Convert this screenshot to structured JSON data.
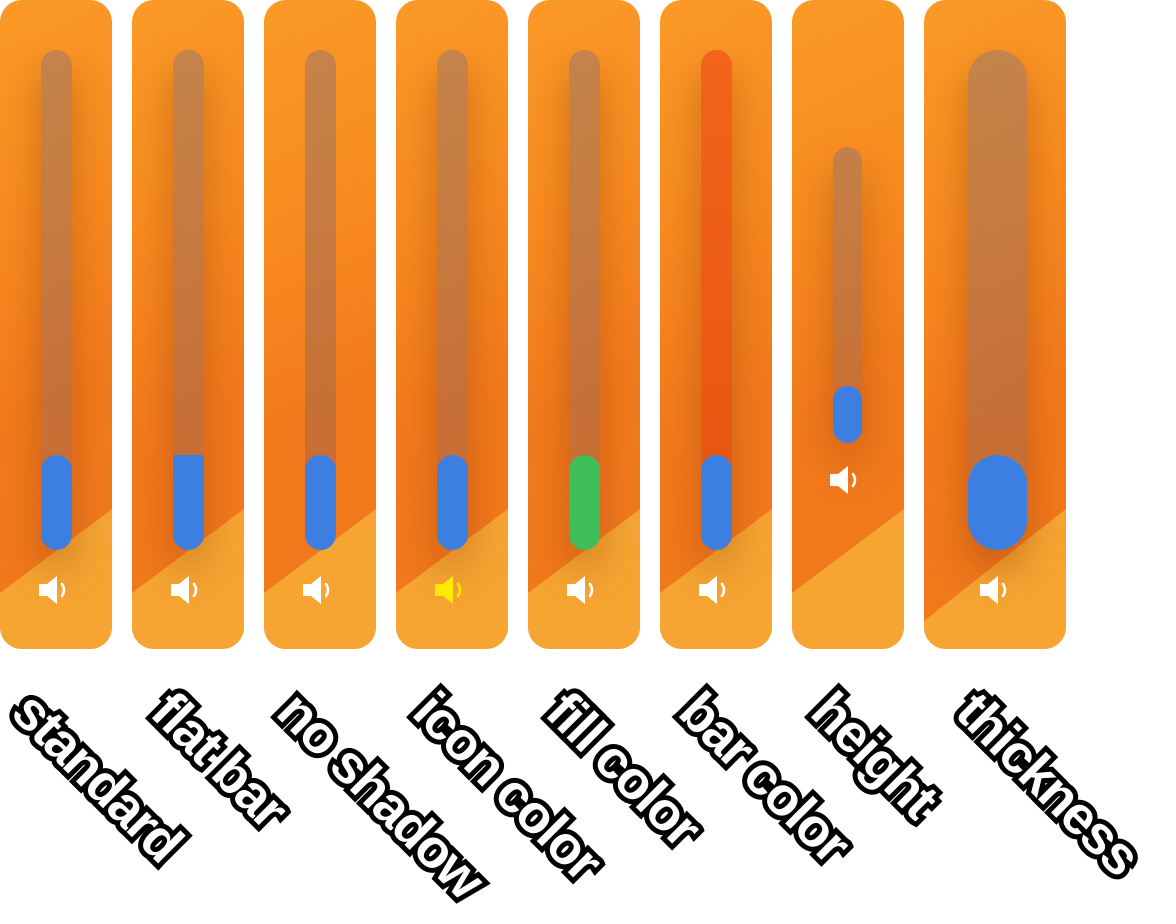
{
  "colors": {
    "panel": "#f88a1f",
    "fill_default": "#3d7fe1",
    "fill_green": "#3fbf5a",
    "bar_red": "#ec5a12",
    "icon_white": "#ffffff",
    "icon_yellow": "#ffea00"
  },
  "icons": {
    "volume": "speaker-icon"
  },
  "variants": [
    {
      "label": "standard",
      "level": 0.19
    },
    {
      "label": "flat bar",
      "level": 0.19
    },
    {
      "label": "no shadow",
      "level": 0.19
    },
    {
      "label": "icon color",
      "level": 0.19
    },
    {
      "label": "fill color",
      "level": 0.19
    },
    {
      "label": "bar color",
      "level": 0.19
    },
    {
      "label": "height",
      "level": 0.19
    },
    {
      "label": "thickness",
      "level": 0.19
    }
  ]
}
